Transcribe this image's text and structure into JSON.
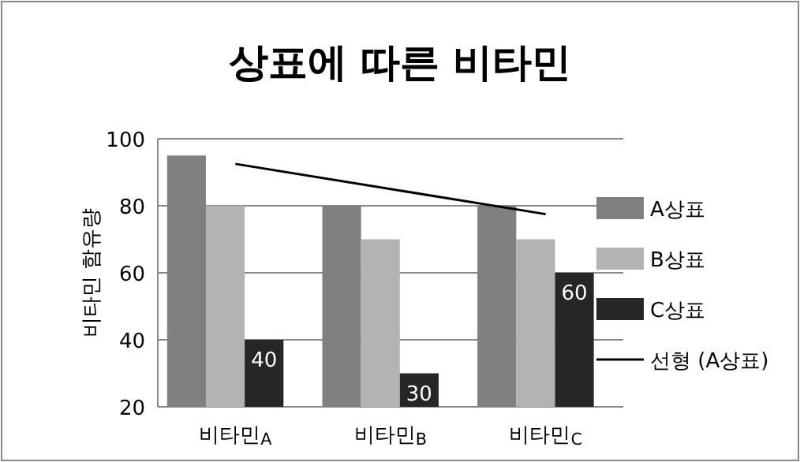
{
  "chart_data": {
    "type": "bar",
    "title": "상표에 따른 비타민",
    "ylabel": "비타민 함유량",
    "categories": [
      "비타민$_{A}$",
      "비타민$_{B}$",
      "비타민$_{C}$"
    ],
    "series": [
      {
        "name": "A상표",
        "color": "#808080",
        "values": [
          95,
          80,
          80
        ]
      },
      {
        "name": "B상표",
        "color": "#b3b3b3",
        "values": [
          80,
          70,
          70
        ]
      },
      {
        "name": "C상표",
        "color": "#262626",
        "values": [
          40,
          30,
          60
        ],
        "value_labels": [
          "40",
          "30",
          "60"
        ]
      },
      {
        "name": "선형 (A상표)",
        "type": "line",
        "color": "#000000",
        "values": [
          92.5,
          85,
          77.5
        ]
      }
    ],
    "ylim": [
      20,
      100
    ],
    "yticks": [
      20,
      40,
      60,
      80,
      100
    ],
    "grid": "y",
    "legend": "right"
  }
}
